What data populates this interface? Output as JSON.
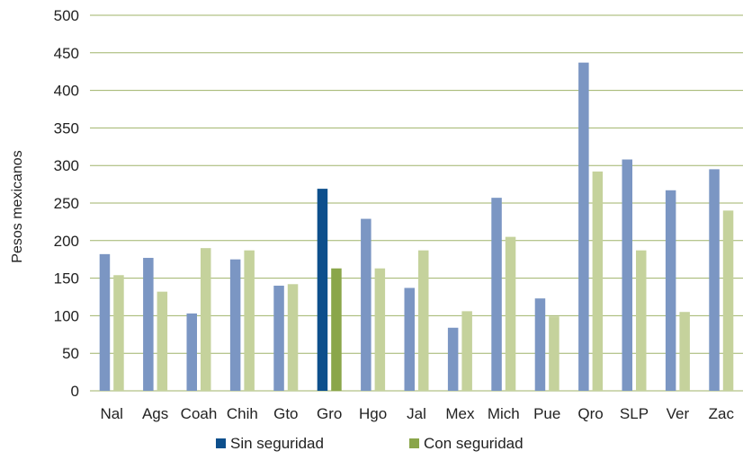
{
  "chart_data": {
    "type": "bar",
    "title": "",
    "xlabel": "",
    "ylabel": "Pesos mexicanos",
    "ylim": [
      0,
      500
    ],
    "yticks": [
      0,
      50,
      100,
      150,
      200,
      250,
      300,
      350,
      400,
      450,
      500
    ],
    "grid": true,
    "legend_position": "bottom",
    "categories": [
      "Nal",
      "Ags",
      "Coah",
      "Chih",
      "Gto",
      "Gro",
      "Hgo",
      "Jal",
      "Mex",
      "Mich",
      "Pue",
      "Qro",
      "SLP",
      "Ver",
      "Zac"
    ],
    "highlight_category": "Gro",
    "series": [
      {
        "name": "Sin seguridad",
        "color": "#7b96c3",
        "highlight_color": "#0d4f8c",
        "values": [
          182,
          177,
          103,
          175,
          140,
          269,
          229,
          137,
          84,
          257,
          123,
          437,
          308,
          267,
          295
        ]
      },
      {
        "name": "Con seguridad",
        "color": "#c5d29c",
        "highlight_color": "#8aa64a",
        "values": [
          154,
          132,
          190,
          187,
          142,
          163,
          163,
          187,
          106,
          205,
          99,
          292,
          187,
          105,
          240
        ]
      }
    ]
  }
}
